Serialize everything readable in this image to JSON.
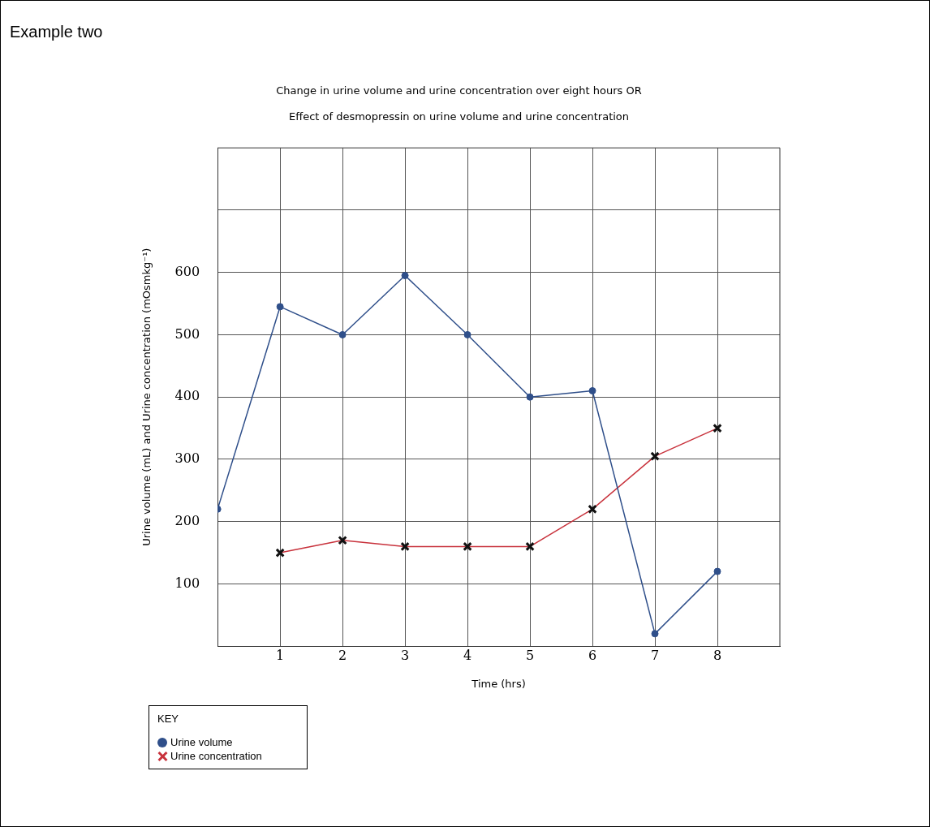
{
  "chart_data": {
    "type": "line",
    "title": "Change in urine volume and urine concentration over eight hours OR",
    "subtitle": "Effect of desmopressin on urine volume and urine concentration",
    "xlabel": "Time (hrs)",
    "ylabel": "Urine volume (mL) and Urine concentration (mOsmkg⁻¹)",
    "legend_title": "KEY",
    "annotations": [
      "Example two"
    ],
    "x": [
      0,
      1,
      2,
      3,
      4,
      5,
      6,
      7,
      8
    ],
    "series": [
      {
        "name": "Urine volume",
        "color": "#2f4f8a",
        "marker": "circle",
        "values": [
          220,
          545,
          500,
          595,
          500,
          400,
          410,
          20,
          120
        ]
      },
      {
        "name": "Urine concentration",
        "color": "#c8323c",
        "marker": "cross",
        "values": [
          null,
          150,
          170,
          160,
          160,
          160,
          220,
          305,
          350
        ]
      }
    ],
    "xlim": [
      0,
      9
    ],
    "xticks": [
      1,
      2,
      3,
      4,
      5,
      6,
      7,
      8
    ],
    "ylim": [
      0,
      800
    ],
    "yticks": [
      100,
      200,
      300,
      400,
      500,
      600,
      {
        "value": 700,
        "label": null
      }
    ],
    "grid": true,
    "legend": "bottom left",
    "line_style": "solid"
  }
}
